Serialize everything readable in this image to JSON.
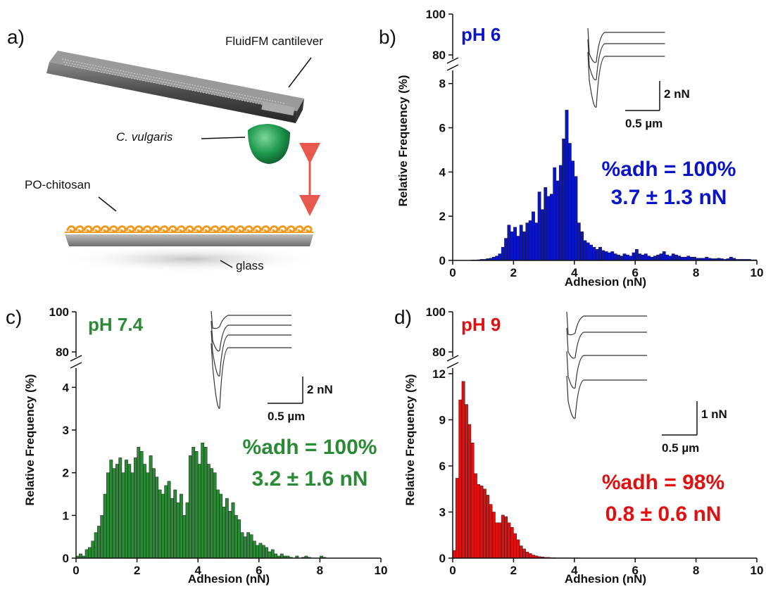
{
  "panel_a": {
    "label": "a)",
    "labels": {
      "cantilever": "FluidFM cantilever",
      "cell": "C. vulgaris",
      "coating": "PO-chitosan",
      "substrate": "glass"
    }
  },
  "chart_data": [
    {
      "id": "b",
      "type": "bar",
      "panel_label": "b)",
      "annotation": "pH 6",
      "color": "#0a14c8",
      "xlabel": "Adhesion (nN)",
      "ylabel": "Relative Frequency (%)",
      "xlim": [
        0,
        10
      ],
      "ylim": [
        0,
        8.5
      ],
      "xticks": [
        0,
        2,
        4,
        6,
        8,
        10
      ],
      "yticks": [
        0,
        2,
        4,
        6,
        8
      ],
      "upper_yticks": [
        80,
        100
      ],
      "bin_width": 0.1,
      "x": [
        0.05,
        0.15,
        0.25,
        0.35,
        0.45,
        0.55,
        0.65,
        0.75,
        0.85,
        0.95,
        1.05,
        1.15,
        1.25,
        1.35,
        1.45,
        1.55,
        1.65,
        1.75,
        1.85,
        1.95,
        2.05,
        2.15,
        2.25,
        2.35,
        2.45,
        2.55,
        2.65,
        2.75,
        2.85,
        2.95,
        3.05,
        3.15,
        3.25,
        3.35,
        3.45,
        3.55,
        3.65,
        3.75,
        3.85,
        3.95,
        4.05,
        4.15,
        4.25,
        4.35,
        4.45,
        4.55,
        4.65,
        4.75,
        4.85,
        4.95,
        5.05,
        5.15,
        5.25,
        5.35,
        5.45,
        5.55,
        5.65,
        5.75,
        5.85,
        5.95,
        6.05,
        6.15,
        6.25,
        6.35,
        6.45,
        6.55,
        6.65,
        6.75,
        6.85,
        6.95,
        7.05,
        7.15,
        7.25,
        7.35,
        7.45,
        7.55,
        7.65,
        7.75,
        7.85,
        7.95,
        8.05,
        8.15,
        8.25,
        8.35,
        8.45,
        8.55,
        8.65,
        8.75,
        8.85,
        8.95,
        9.05,
        9.15,
        9.25,
        9.35,
        9.45,
        9.55,
        9.65,
        9.75,
        9.85,
        9.95
      ],
      "values": [
        0,
        0,
        0,
        0,
        0,
        0,
        0.02,
        0.02,
        0.03,
        0.05,
        0.05,
        0.08,
        0.1,
        0.15,
        0.2,
        0.3,
        0.6,
        1.0,
        1.6,
        1.3,
        1.5,
        1.1,
        1.6,
        1.3,
        1.7,
        1.8,
        2.2,
        1.7,
        3.1,
        2.3,
        3.3,
        2.9,
        3.0,
        4.2,
        3.6,
        4.3,
        5.5,
        6.8,
        5.3,
        4.5,
        3.8,
        1.7,
        1.3,
        0.9,
        0.8,
        0.7,
        0.6,
        0.5,
        0.6,
        0.45,
        0.4,
        0.35,
        0.4,
        0.3,
        0.25,
        0.2,
        0.3,
        0.25,
        0.2,
        0.35,
        0.5,
        0.3,
        0.25,
        0.3,
        0.2,
        0.15,
        0.2,
        0.25,
        0.3,
        0.4,
        0.25,
        0.2,
        0.3,
        0.25,
        0.2,
        0.15,
        0.15,
        0.2,
        0.15,
        0.15,
        0.1,
        0.1,
        0.1,
        0.15,
        0.1,
        0.08,
        0.08,
        0.1,
        0.08,
        0.05,
        0.08,
        0.15,
        0.1,
        0.05,
        0.05,
        0.05,
        0.05,
        0.05,
        0.03,
        0.03
      ],
      "stats": {
        "line1": "%adh = 100%",
        "line2": "3.7 ± 1.3 nN"
      },
      "scalebar": {
        "force": "2 nN",
        "distance": "0.5 µm"
      }
    },
    {
      "id": "c",
      "type": "bar",
      "panel_label": "c)",
      "annotation": "pH 7.4",
      "color": "#2a8a35",
      "xlabel": "Adhesion (nN)",
      "ylabel": "Relative Frequency (%)",
      "xlim": [
        0,
        10
      ],
      "ylim": [
        0,
        4.5
      ],
      "xticks": [
        0,
        2,
        4,
        6,
        8,
        10
      ],
      "yticks": [
        0,
        1,
        2,
        3,
        4
      ],
      "upper_yticks": [
        80,
        100
      ],
      "bin_width": 0.1,
      "x": [
        0.05,
        0.15,
        0.25,
        0.35,
        0.45,
        0.55,
        0.65,
        0.75,
        0.85,
        0.95,
        1.05,
        1.15,
        1.25,
        1.35,
        1.45,
        1.55,
        1.65,
        1.75,
        1.85,
        1.95,
        2.05,
        2.15,
        2.25,
        2.35,
        2.45,
        2.55,
        2.65,
        2.75,
        2.85,
        2.95,
        3.05,
        3.15,
        3.25,
        3.35,
        3.45,
        3.55,
        3.65,
        3.75,
        3.85,
        3.95,
        4.05,
        4.15,
        4.25,
        4.35,
        4.45,
        4.55,
        4.65,
        4.75,
        4.85,
        4.95,
        5.05,
        5.15,
        5.25,
        5.35,
        5.45,
        5.55,
        5.65,
        5.75,
        5.85,
        5.95,
        6.05,
        6.15,
        6.25,
        6.35,
        6.45,
        6.55,
        6.65,
        6.75,
        6.85,
        6.95,
        7.05,
        7.15,
        7.25,
        7.35,
        7.45,
        7.55,
        7.65,
        7.75,
        7.85,
        7.95,
        8.05,
        8.15,
        8.25,
        8.35,
        8.45,
        8.55,
        8.65,
        8.75,
        8.85,
        8.95,
        9.05,
        9.15,
        9.25,
        9.35,
        9.45,
        9.55,
        9.65,
        9.75,
        9.85,
        9.95
      ],
      "values": [
        0.05,
        0.1,
        0.05,
        0.2,
        0.25,
        0.4,
        0.6,
        0.75,
        1.0,
        1.5,
        2.0,
        2.3,
        2.1,
        2.2,
        2.35,
        2.0,
        2.3,
        2.2,
        2.0,
        2.35,
        2.6,
        2.5,
        2.2,
        2.0,
        2.4,
        2.1,
        1.9,
        1.6,
        1.5,
        1.7,
        1.8,
        1.4,
        1.6,
        1.3,
        1.5,
        1.0,
        1.3,
        2.4,
        2.6,
        2.5,
        2.2,
        2.7,
        2.6,
        2.2,
        2.1,
        2.0,
        1.6,
        1.5,
        1.2,
        1.4,
        1.1,
        1.3,
        1.0,
        0.9,
        0.6,
        0.5,
        0.6,
        0.55,
        0.4,
        0.3,
        0.35,
        0.3,
        0.25,
        0.15,
        0.2,
        0.1,
        0.05,
        0.1,
        0.05,
        0.05,
        0.02,
        0,
        0.05,
        0,
        0.02,
        0.05,
        0.02,
        0,
        0,
        0,
        0.05,
        0.02,
        0,
        0,
        0,
        0,
        0,
        0,
        0,
        0,
        0,
        0,
        0,
        0,
        0,
        0,
        0,
        0,
        0,
        0
      ],
      "stats": {
        "line1": "%adh = 100%",
        "line2": "3.2 ± 1.6 nN"
      },
      "scalebar": {
        "force": "2 nN",
        "distance": "0.5 µm"
      }
    },
    {
      "id": "d",
      "type": "bar",
      "panel_label": "d)",
      "annotation": "pH 9",
      "color": "#e01010",
      "xlabel": "Adhesion (nN)",
      "ylabel": "Relative Frequency (%)",
      "xlim": [
        0,
        10
      ],
      "ylim": [
        0,
        12.5
      ],
      "xticks": [
        0,
        2,
        4,
        6,
        8,
        10
      ],
      "yticks": [
        0,
        3,
        6,
        9,
        12
      ],
      "upper_yticks": [
        80,
        100
      ],
      "bin_width": 0.1,
      "x": [
        0.05,
        0.15,
        0.25,
        0.35,
        0.45,
        0.55,
        0.65,
        0.75,
        0.85,
        0.95,
        1.05,
        1.15,
        1.25,
        1.35,
        1.45,
        1.55,
        1.65,
        1.75,
        1.85,
        1.95,
        2.05,
        2.15,
        2.25,
        2.35,
        2.45,
        2.55,
        2.65,
        2.75,
        2.85,
        2.95,
        3.05,
        3.15,
        3.25,
        3.35,
        3.45,
        3.55,
        3.65,
        3.75,
        3.85,
        3.95,
        4.05,
        4.15,
        4.25,
        4.35,
        4.45,
        4.55,
        4.65,
        4.75,
        4.85,
        4.95
      ],
      "values": [
        0.5,
        5.2,
        10.3,
        11.5,
        10.0,
        8.7,
        7.5,
        5.5,
        4.8,
        4.7,
        4.5,
        4.1,
        3.5,
        3.0,
        2.3,
        2.3,
        2.8,
        2.7,
        2.3,
        2.0,
        1.6,
        1.2,
        0.8,
        0.6,
        0.4,
        0.3,
        0.2,
        0.15,
        0.1,
        0.08,
        0.05,
        0.05,
        0.03,
        0.03,
        0.02,
        0.02,
        0.02,
        0.02,
        0.02,
        0.02,
        0.02,
        0.02,
        0.01,
        0.01,
        0.01,
        0.01,
        0.01,
        0.01,
        0.01,
        0.01
      ],
      "stats": {
        "line1": "%adh = 98%",
        "line2": "0.8 ± 0.6 nN"
      },
      "scalebar": {
        "force": "1 nN",
        "distance": "0.5 µm"
      }
    }
  ]
}
